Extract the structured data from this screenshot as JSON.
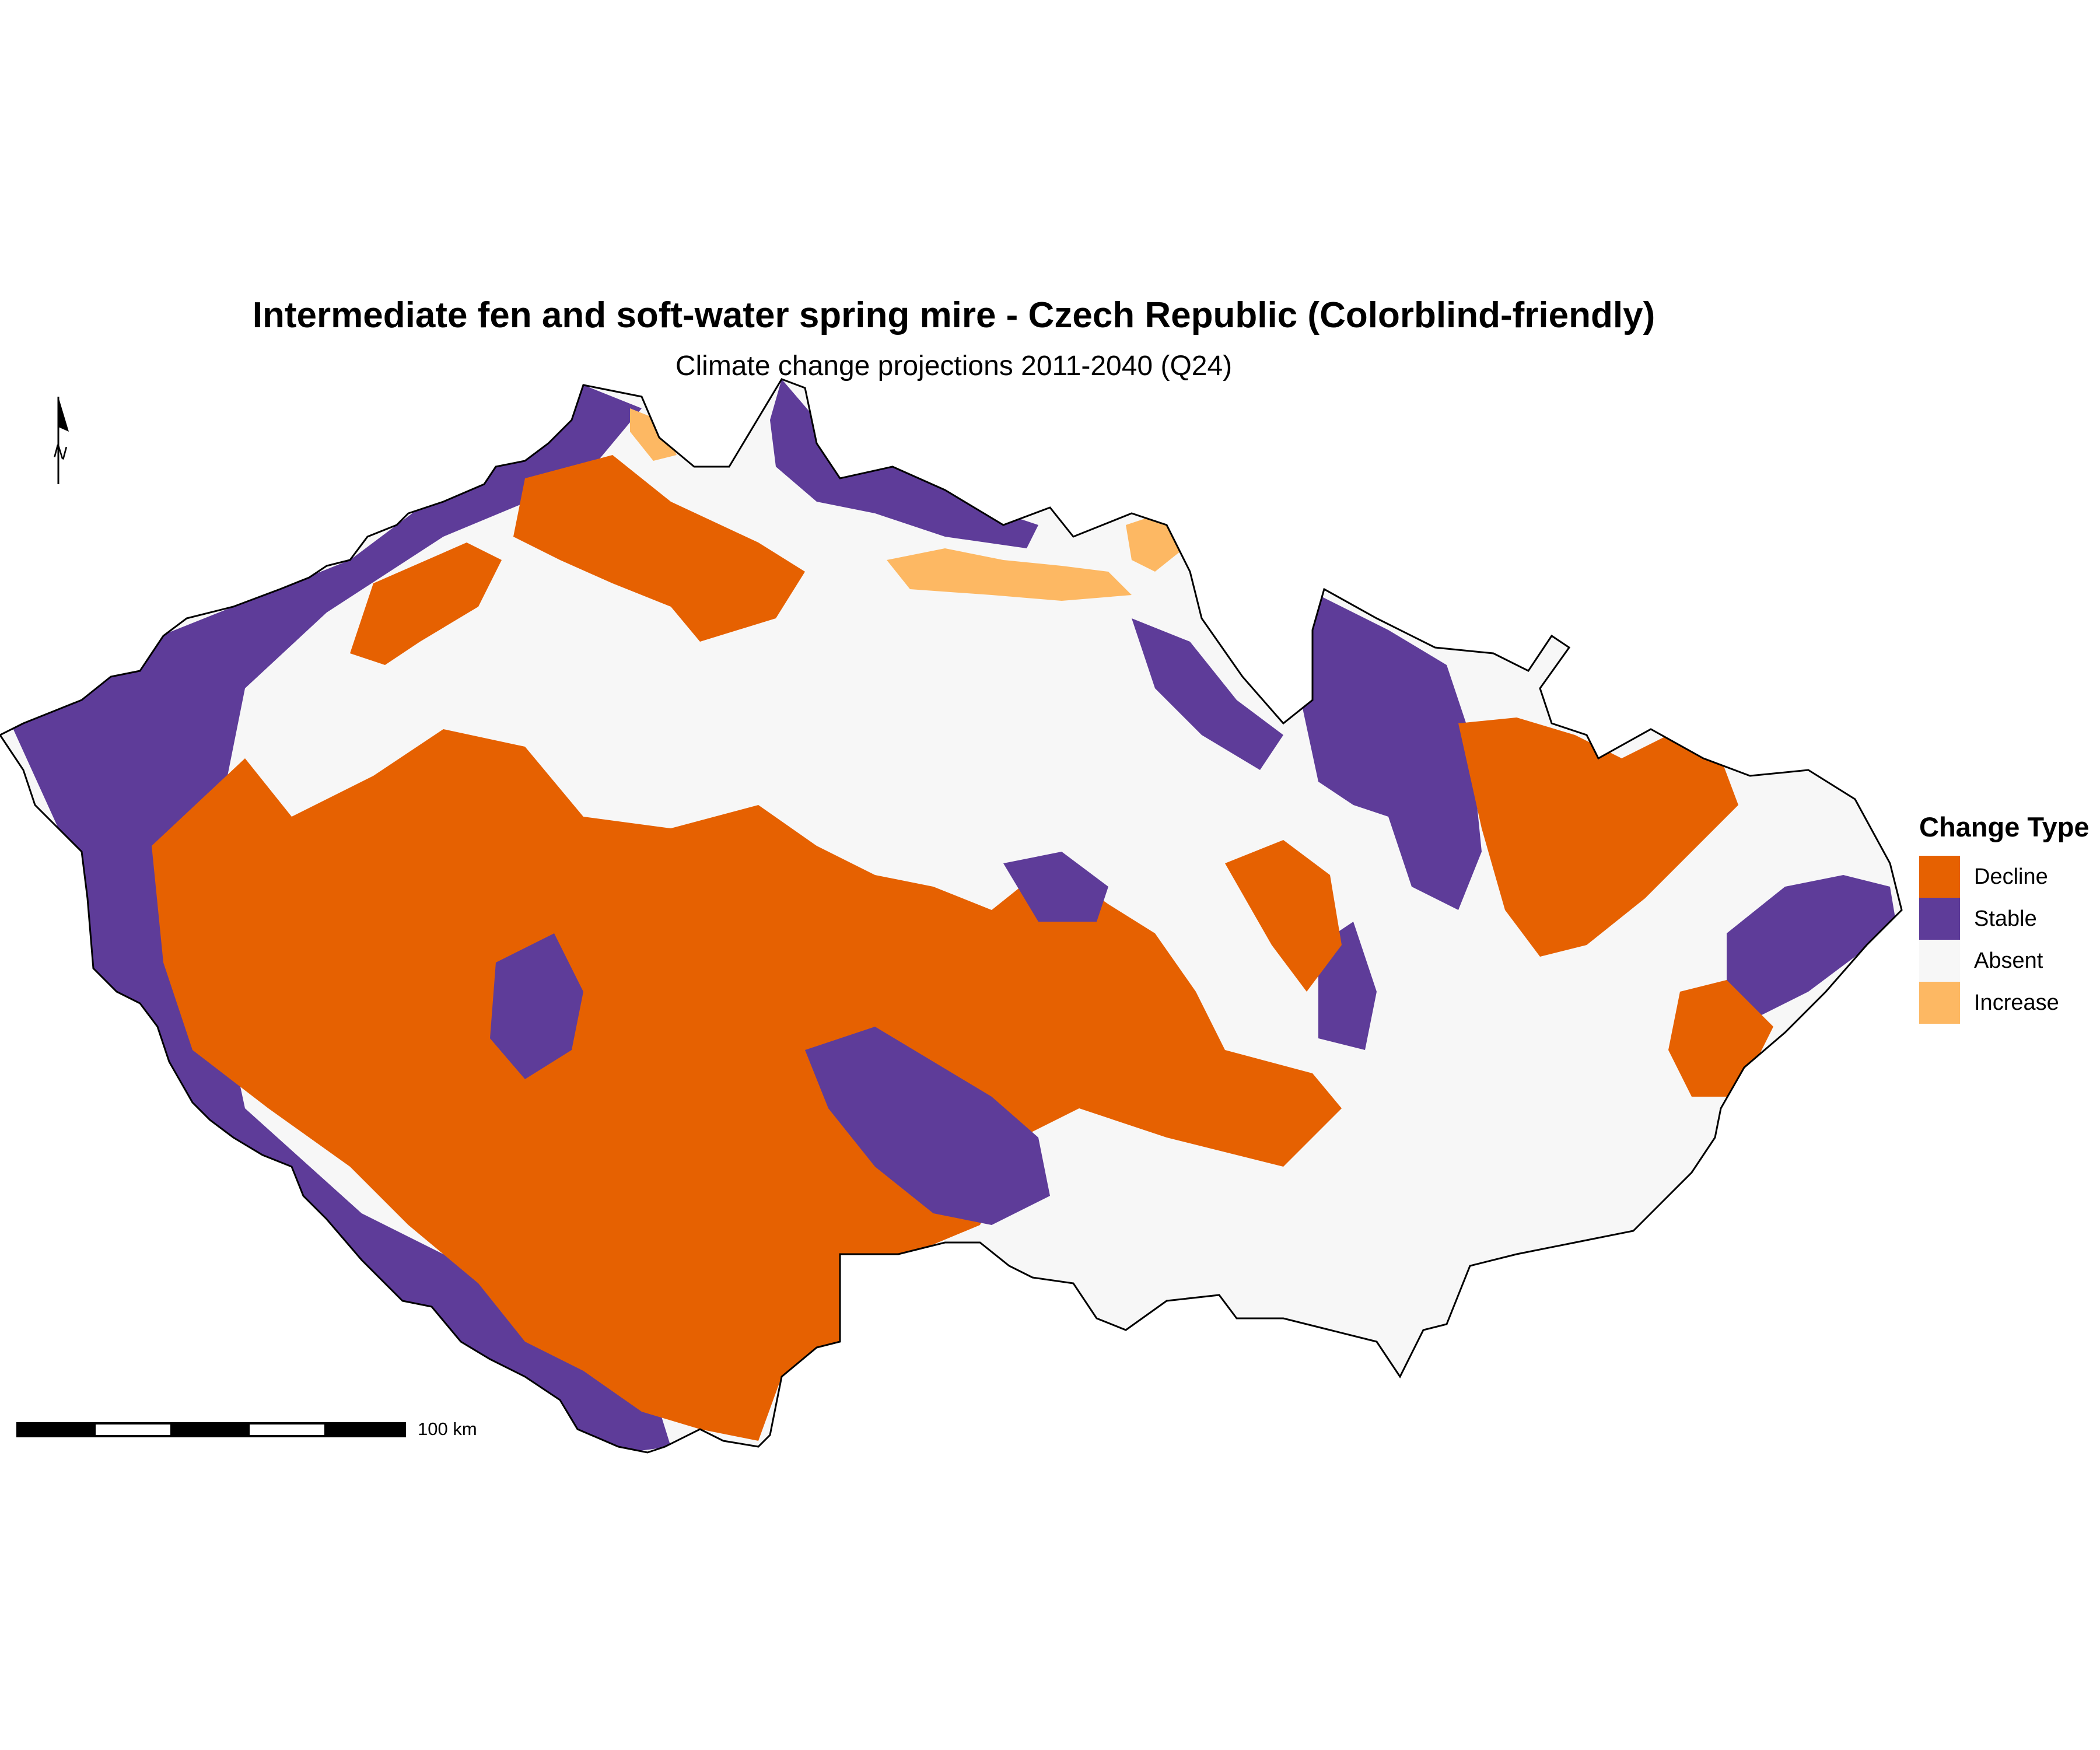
{
  "title": "Intermediate fen and soft-water spring mire - Czech Republic (Colorblind-friendly)",
  "subtitle": "Climate change projections 2011-2040 (Q24)",
  "north_arrow": {
    "label": "N"
  },
  "scale_bar": {
    "label": "100 km"
  },
  "legend": {
    "title": "Change Type",
    "items": [
      {
        "label": "Decline",
        "color": "#e66101"
      },
      {
        "label": "Stable",
        "color": "#5e3c99"
      },
      {
        "label": "Absent",
        "color": "#f7f7f7"
      },
      {
        "label": "Increase",
        "color": "#fdb863"
      }
    ]
  }
}
